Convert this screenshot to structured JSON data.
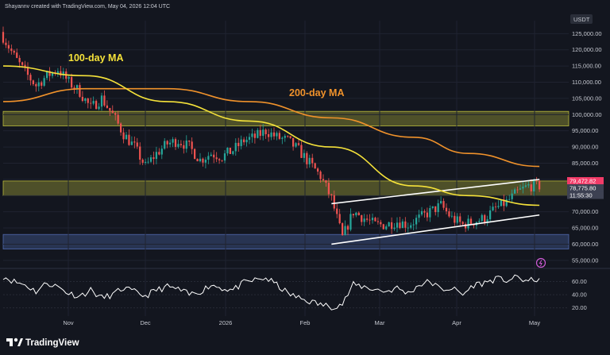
{
  "header": {
    "credit": "Shayannv created with TradingView.com, May 04, 2026 12:04 UTC",
    "currency": "USDT"
  },
  "brand": {
    "name": "TradingView"
  },
  "chart_data": {
    "type": "candlestick",
    "title": "",
    "currency": "USDT",
    "x_ticks": [
      "Nov",
      "Dec",
      "2026",
      "Feb",
      "Mar",
      "Apr",
      "May"
    ],
    "y_ticks": [
      55000,
      60000,
      65000,
      70000,
      75000,
      80000,
      85000,
      90000,
      95000,
      100000,
      105000,
      110000,
      115000,
      120000,
      125000
    ],
    "y_tick_labels": [
      "55,000.00",
      "60,000.00",
      "65,000.00",
      "70,000.00",
      "75,000.00",
      "80,000.00",
      "85,000.00",
      "90,000.00",
      "95,000.00",
      "100,000.00",
      "105,000.00",
      "110,000.00",
      "115,000.00",
      "120,000.00",
      "125,000.00"
    ],
    "ylim": [
      53000,
      129000
    ],
    "price_path": {
      "day_index": [
        0,
        4,
        8,
        12,
        16,
        20,
        24,
        28,
        32,
        36,
        40,
        44,
        48,
        52,
        56,
        60,
        64,
        68,
        72,
        76,
        80,
        84,
        88,
        92,
        96,
        100,
        104,
        108,
        112,
        116,
        120,
        124,
        128,
        132,
        136,
        140,
        144,
        148,
        152,
        156,
        160,
        164,
        168,
        172,
        176,
        180,
        184,
        188,
        192,
        196
      ],
      "close": [
        124000,
        118000,
        113000,
        109000,
        112000,
        114000,
        110000,
        107000,
        102000,
        105000,
        100000,
        94000,
        90000,
        84000,
        88000,
        91000,
        92000,
        90000,
        86000,
        88000,
        87000,
        89000,
        92000,
        93000,
        95000,
        93000,
        92000,
        89000,
        85000,
        81000,
        74000,
        62000,
        70000,
        68000,
        66000,
        66000,
        67000,
        66000,
        68000,
        70000,
        72000,
        68000,
        66000,
        67000,
        68000,
        71000,
        73000,
        76000,
        78000,
        78000
      ]
    },
    "ma_100": {
      "name": "100-day MA",
      "color": "#f5e23a",
      "day_index": [
        0,
        30,
        60,
        90,
        120,
        150,
        170,
        196
      ],
      "values": [
        115000,
        112000,
        104000,
        98000,
        90000,
        78000,
        75000,
        72000
      ]
    },
    "ma_200": {
      "name": "200-day MA",
      "color": "#f0922b",
      "day_index": [
        0,
        30,
        60,
        90,
        120,
        150,
        170,
        196
      ],
      "values": [
        104000,
        108000,
        108000,
        104000,
        99000,
        93000,
        88000,
        84000
      ]
    },
    "zones": [
      {
        "from": 96500,
        "to": 101000,
        "color": "#d7d742"
      },
      {
        "from": 75000,
        "to": 79500,
        "color": "#d7d742"
      },
      {
        "from": 58500,
        "to": 63000,
        "color": "#5b79c9"
      }
    ],
    "channel": {
      "upper": {
        "from_day": 120,
        "from_value": 72500,
        "to_day": 196,
        "to_value": 80000
      },
      "lower": {
        "from_day": 120,
        "from_value": 60000,
        "to_day": 196,
        "to_value": 69000
      }
    },
    "price_labels": [
      {
        "value": 79472.82,
        "text": "79,472.82",
        "color": "#f23b68"
      },
      {
        "value": 78775.8,
        "text": "78,775.80",
        "color": "#3d4152"
      },
      {
        "value": 77300,
        "text": "11:55:30",
        "color": "#3d4152"
      }
    ],
    "oscillator": {
      "y_ticks": [
        20,
        40,
        60
      ],
      "y_tick_labels": [
        "20.00",
        "40.00",
        "60.00"
      ],
      "ylim": [
        10,
        75
      ],
      "color": "#ffffff",
      "values": [
        68,
        60,
        55,
        45,
        58,
        52,
        42,
        38,
        47,
        35,
        40,
        50,
        44,
        38,
        47,
        52,
        48,
        40,
        45,
        55,
        50,
        47,
        58,
        62,
        65,
        55,
        42,
        35,
        30,
        25,
        22,
        26,
        55,
        52,
        48,
        45,
        50,
        42,
        55,
        60,
        48,
        50,
        40,
        55,
        58,
        64,
        62,
        66,
        60,
        65
      ]
    }
  }
}
